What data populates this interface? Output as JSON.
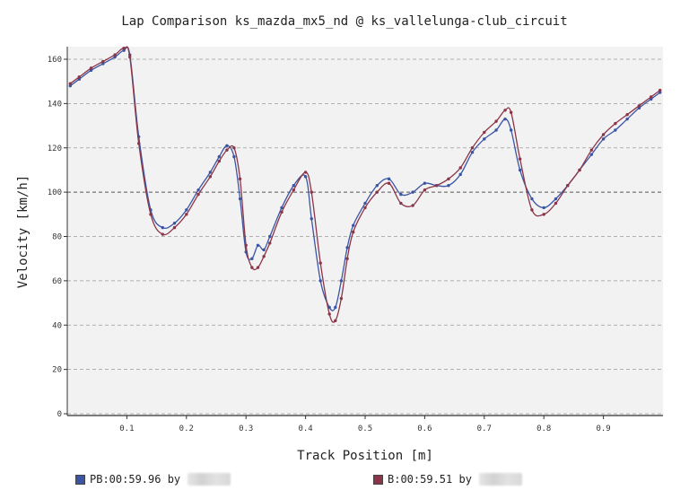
{
  "chart_data": {
    "type": "line",
    "title": "Lap Comparison ks_mazda_mx5_nd @ ks_vallelunga-club_circuit",
    "xlabel": "Track Position [m]",
    "ylabel": "Velocity [km/h]",
    "xlim": [
      0.0,
      1.0
    ],
    "ylim": [
      0,
      165
    ],
    "x_ticks": [
      0.1,
      0.2,
      0.3,
      0.4,
      0.5,
      0.6,
      0.7,
      0.8,
      0.9
    ],
    "y_ticks": [
      0,
      20,
      40,
      60,
      80,
      100,
      120,
      140,
      160
    ],
    "grid": true,
    "reference_line": 100,
    "legend_position": "bottom",
    "series": [
      {
        "name": "PB:00:59.96 by",
        "color": "#3b55a4",
        "x": [
          0.005,
          0.02,
          0.04,
          0.06,
          0.08,
          0.095,
          0.105,
          0.12,
          0.14,
          0.16,
          0.18,
          0.2,
          0.22,
          0.24,
          0.255,
          0.268,
          0.28,
          0.29,
          0.3,
          0.31,
          0.32,
          0.33,
          0.34,
          0.36,
          0.38,
          0.4,
          0.41,
          0.425,
          0.44,
          0.45,
          0.46,
          0.47,
          0.48,
          0.5,
          0.52,
          0.54,
          0.56,
          0.58,
          0.6,
          0.62,
          0.64,
          0.66,
          0.68,
          0.7,
          0.72,
          0.735,
          0.745,
          0.76,
          0.78,
          0.8,
          0.82,
          0.84,
          0.86,
          0.88,
          0.9,
          0.92,
          0.94,
          0.96,
          0.98,
          0.995
        ],
        "y": [
          148,
          151,
          155,
          158,
          161,
          164,
          162,
          125,
          92,
          84,
          86,
          92,
          101,
          109,
          116,
          121,
          116,
          97,
          73,
          70,
          76,
          74,
          80,
          93,
          103,
          107,
          88,
          60,
          48,
          48,
          60,
          75,
          85,
          95,
          103,
          106,
          99,
          100,
          104,
          103,
          103,
          108,
          118,
          124,
          128,
          133,
          128,
          110,
          97,
          93,
          97,
          103,
          110,
          117,
          124,
          128,
          133,
          138,
          142,
          145
        ]
      },
      {
        "name": "B:00:59.51 by",
        "color": "#8b3548",
        "x": [
          0.005,
          0.02,
          0.04,
          0.06,
          0.08,
          0.095,
          0.105,
          0.12,
          0.14,
          0.16,
          0.18,
          0.2,
          0.22,
          0.24,
          0.255,
          0.268,
          0.28,
          0.29,
          0.3,
          0.31,
          0.32,
          0.33,
          0.34,
          0.36,
          0.38,
          0.4,
          0.41,
          0.425,
          0.44,
          0.45,
          0.46,
          0.47,
          0.48,
          0.5,
          0.52,
          0.54,
          0.56,
          0.58,
          0.6,
          0.62,
          0.64,
          0.66,
          0.68,
          0.7,
          0.72,
          0.735,
          0.745,
          0.76,
          0.78,
          0.8,
          0.82,
          0.84,
          0.86,
          0.88,
          0.9,
          0.92,
          0.94,
          0.96,
          0.98,
          0.995
        ],
        "y": [
          149,
          152,
          156,
          159,
          162,
          165,
          161,
          122,
          90,
          81,
          84,
          90,
          99,
          107,
          114,
          119,
          120,
          106,
          76,
          66,
          66,
          71,
          77,
          91,
          101,
          109,
          100,
          68,
          45,
          42,
          52,
          70,
          82,
          93,
          100,
          104,
          95,
          94,
          101,
          103,
          106,
          111,
          120,
          127,
          132,
          137,
          136,
          115,
          92,
          90,
          95,
          103,
          110,
          119,
          126,
          131,
          135,
          139,
          143,
          146
        ]
      }
    ]
  }
}
